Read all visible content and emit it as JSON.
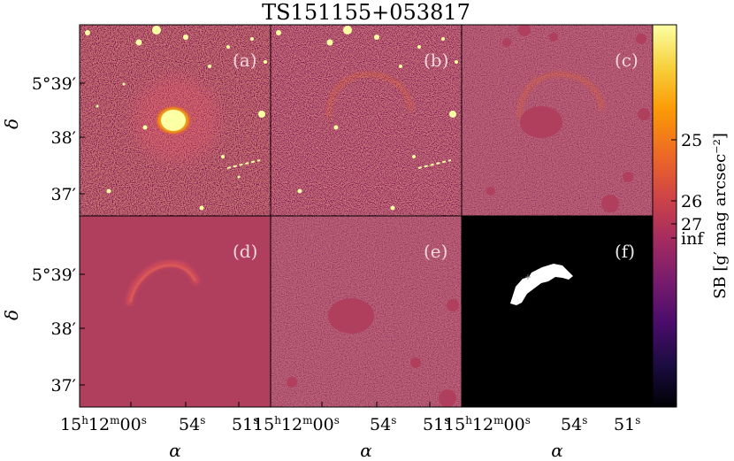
{
  "figure": {
    "title": "TS151155+053817",
    "panels": [
      {
        "label": "(a)",
        "kind": "image"
      },
      {
        "label": "(b)",
        "kind": "model-subtracted"
      },
      {
        "label": "(c)",
        "kind": "masked"
      },
      {
        "label": "(d)",
        "kind": "stream-model"
      },
      {
        "label": "(e)",
        "kind": "residual"
      },
      {
        "label": "(f)",
        "kind": "mask"
      }
    ],
    "y_axis": {
      "label": "δ",
      "ticks": [
        "5°39′",
        "38′",
        "37′"
      ]
    },
    "x_axis": {
      "label": "α",
      "ticks": [
        {
          "main": "15",
          "sup1": "h",
          "mid": "12",
          "sup2": "m",
          "end": "00",
          "sup3": "s"
        },
        {
          "main": "54",
          "sup3": "s"
        },
        {
          "main": "51",
          "sup3": "s"
        }
      ]
    },
    "colorbar": {
      "label": "SB [g′ mag arcsec⁻²]",
      "ticks": [
        "25",
        "26",
        "27",
        "inf"
      ],
      "colors": [
        "#000004",
        "#1b0c41",
        "#4a0c6b",
        "#781c6d",
        "#a52c60",
        "#cf4446",
        "#ed6925",
        "#fb9b06",
        "#f7d13d",
        "#fcffa4"
      ]
    },
    "colors": {
      "background": "#b03f5e",
      "mask_background": "#000000",
      "mask_fill": "#ffffff"
    }
  }
}
